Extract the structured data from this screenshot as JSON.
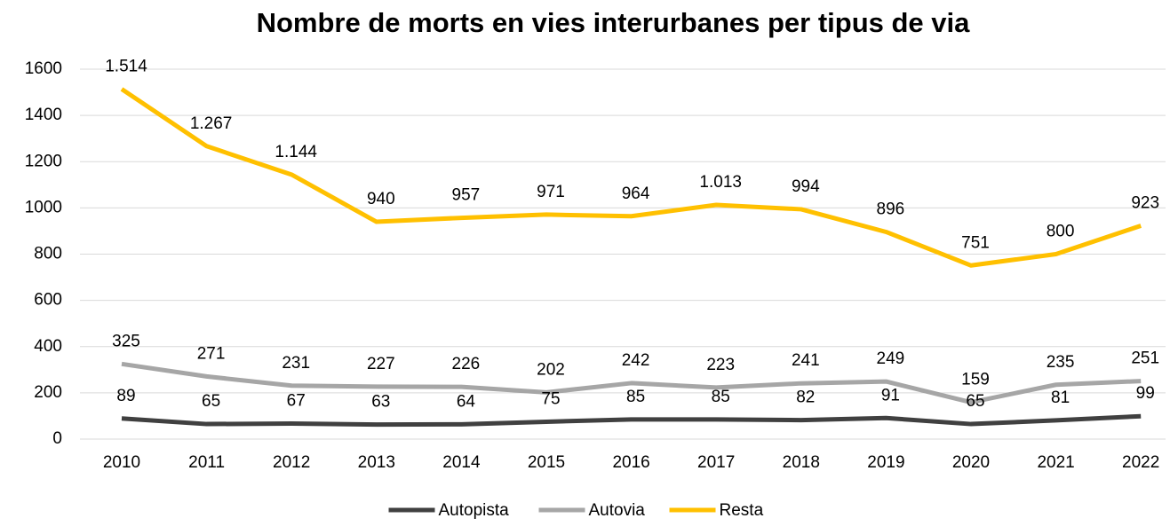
{
  "chart_data": {
    "type": "line",
    "title": "Nombre de morts en vies interurbanes per tipus de via",
    "categories": [
      "2010",
      "2011",
      "2012",
      "2013",
      "2014",
      "2015",
      "2016",
      "2017",
      "2018",
      "2019",
      "2020",
      "2021",
      "2022"
    ],
    "series": [
      {
        "name": "Autopista",
        "color": "#404040",
        "values": [
          89,
          65,
          67,
          63,
          64,
          75,
          85,
          85,
          82,
          91,
          65,
          81,
          99
        ]
      },
      {
        "name": "Autovia",
        "color": "#a6a6a6",
        "values": [
          325,
          271,
          231,
          227,
          226,
          202,
          242,
          223,
          241,
          249,
          159,
          235,
          251
        ]
      },
      {
        "name": "Resta",
        "color": "#ffc000",
        "values": [
          1514,
          1267,
          1144,
          940,
          957,
          971,
          964,
          1013,
          994,
          896,
          751,
          800,
          923
        ],
        "value_labels": [
          "1.514",
          "1.267",
          "1.144",
          "940",
          "957",
          "971",
          "964",
          "1.013",
          "994",
          "896",
          "751",
          "800",
          "923"
        ]
      }
    ],
    "ylim": [
      0,
      1600
    ],
    "yticks": [
      0,
      200,
      400,
      600,
      800,
      1000,
      1200,
      1400,
      1600
    ],
    "grid": true,
    "legend": "bottom"
  }
}
